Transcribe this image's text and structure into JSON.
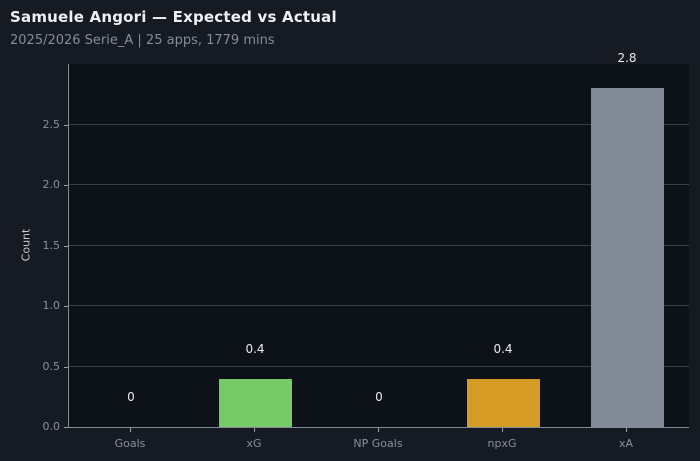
{
  "chart_data": {
    "type": "bar",
    "title": "Samuele Angori — Expected vs Actual",
    "subtitle": "2025/2026 Serie_A | 25 apps, 1779 mins",
    "categories": [
      "Goals",
      "xG",
      "NP Goals",
      "npxG",
      "xA"
    ],
    "values": [
      0,
      0.4,
      0,
      0.4,
      2.8
    ],
    "value_labels": [
      "0",
      "0.4",
      "0",
      "0.4",
      "2.8"
    ],
    "bar_colors": [
      "#76cb68",
      "#76cb68",
      "#d59b25",
      "#d59b25",
      "#828997"
    ],
    "xlabel": "",
    "ylabel": "Count",
    "yticks": [
      0.0,
      0.5,
      1.0,
      1.5,
      2.0,
      2.5
    ],
    "ytick_labels": [
      "0.0",
      "0.5",
      "1.0",
      "1.5",
      "2.0",
      "2.5"
    ],
    "ylim": [
      0,
      3.0
    ],
    "grid": "horizontal",
    "legend": "none"
  },
  "theme": {
    "page_background": "#161a22",
    "plot_background": "#0d1118",
    "title_color": "#eef0f2",
    "subtitle_color": "#868c96",
    "tick_label_color": "#8a909a",
    "value_label_color": "#e8eaec",
    "spine_color": "#858b95",
    "grid_color": "rgba(125,136,152,0.38)"
  }
}
